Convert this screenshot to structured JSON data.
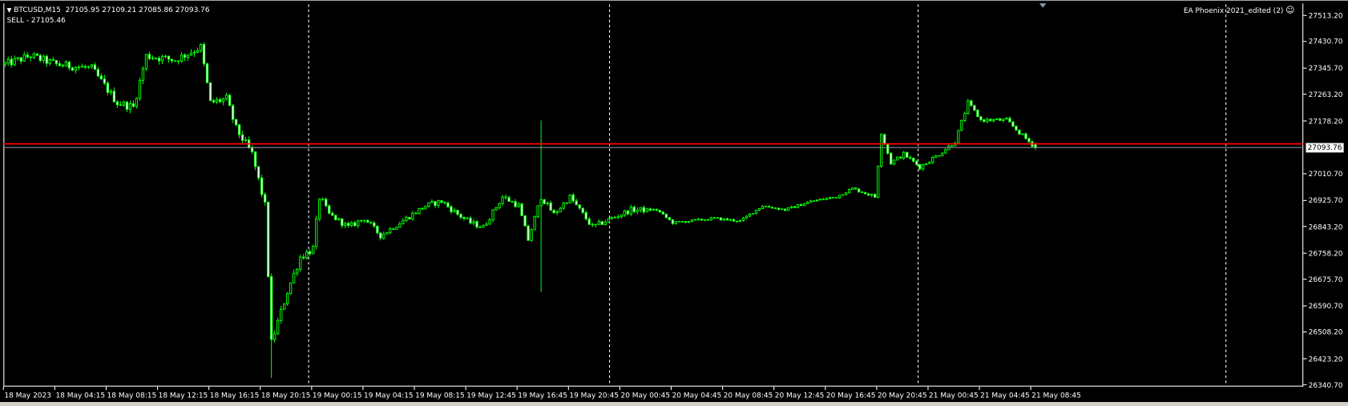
{
  "header": {
    "symbol_line": "BTCUSD,M15  27105.95 27109.21 27085.86 27093.76",
    "order_line": "SELL - 27105.46",
    "ea_label": "EA Phoenix 2021_edited (2)",
    "ea_icon": "smiley-face-icon"
  },
  "colors": {
    "background": "#000000",
    "candle_outline": "#00ff00",
    "bull_fill": "#000000",
    "bear_fill": "#ffffff",
    "sell_line": "#ff0000",
    "bid_line": "#8c9aa8",
    "grid_separator": "#ffffff"
  },
  "price_axis": {
    "labels": [
      "27513.20",
      "27430.70",
      "27345.70",
      "27263.20",
      "27178.20",
      "27010.70",
      "26925.70",
      "26843.20",
      "26758.20",
      "26675.70",
      "26590.70",
      "26508.20",
      "26423.20",
      "26340.70"
    ],
    "current_price": "27093.76"
  },
  "time_axis": {
    "labels": [
      "18 May 2023",
      "18 May 04:15",
      "18 May 08:15",
      "18 May 12:15",
      "18 May 16:15",
      "18 May 20:15",
      "19 May 00:15",
      "19 May 04:15",
      "19 May 08:15",
      "19 May 12:45",
      "19 May 16:45",
      "19 May 20:45",
      "20 May 00:45",
      "20 May 04:45",
      "20 May 08:45",
      "20 May 12:45",
      "20 May 16:45",
      "20 May 20:45",
      "21 May 00:45",
      "21 May 04:45",
      "21 May 08:45"
    ]
  },
  "chart_data": {
    "type": "candlestick",
    "symbol": "BTCUSD",
    "timeframe": "M15",
    "ylim": [
      26340.7,
      27513.2
    ],
    "last": {
      "open": 27105.95,
      "high": 27109.21,
      "low": 27085.86,
      "close": 27093.76
    },
    "sell_level": 27105.46,
    "bid_level": 27093.76,
    "bar_count": 322,
    "close_keypoints": [
      [
        0,
        27358
      ],
      [
        8,
        27385
      ],
      [
        16,
        27358
      ],
      [
        27,
        27345
      ],
      [
        35,
        27236
      ],
      [
        40,
        27222
      ],
      [
        44,
        27385
      ],
      [
        53,
        27372
      ],
      [
        61,
        27413
      ],
      [
        64,
        27236
      ],
      [
        69,
        27249
      ],
      [
        72,
        27154
      ],
      [
        77,
        27073
      ],
      [
        81,
        26909
      ],
      [
        83,
        26474
      ],
      [
        88,
        26637
      ],
      [
        92,
        26746
      ],
      [
        96,
        26773
      ],
      [
        98,
        26937
      ],
      [
        101,
        26882
      ],
      [
        107,
        26841
      ],
      [
        112,
        26869
      ],
      [
        117,
        26814
      ],
      [
        123,
        26855
      ],
      [
        131,
        26909
      ],
      [
        136,
        26923
      ],
      [
        141,
        26882
      ],
      [
        145,
        26855
      ],
      [
        149,
        26841
      ],
      [
        155,
        26937
      ],
      [
        160,
        26909
      ],
      [
        163,
        26801
      ],
      [
        167,
        26937
      ],
      [
        171,
        26882
      ],
      [
        176,
        26937
      ],
      [
        183,
        26841
      ],
      [
        189,
        26869
      ],
      [
        195,
        26896
      ],
      [
        203,
        26896
      ],
      [
        208,
        26855
      ],
      [
        213,
        26860
      ],
      [
        221,
        26869
      ],
      [
        229,
        26860
      ],
      [
        236,
        26909
      ],
      [
        243,
        26896
      ],
      [
        251,
        26923
      ],
      [
        259,
        26937
      ],
      [
        264,
        26964
      ],
      [
        271,
        26937
      ],
      [
        273,
        27141
      ],
      [
        276,
        27045
      ],
      [
        280,
        27073
      ],
      [
        285,
        27032
      ],
      [
        291,
        27073
      ],
      [
        296,
        27113
      ],
      [
        300,
        27236
      ],
      [
        304,
        27181
      ],
      [
        312,
        27181
      ],
      [
        316,
        27141
      ],
      [
        321,
        27093.76
      ]
    ],
    "wick_extremes": [
      {
        "bar": 83,
        "low": 26362
      },
      {
        "bar": 167,
        "high": 27180,
        "low": 26635
      }
    ],
    "day_separators": [
      "19 May 00:00",
      "20 May 00:00",
      "21 May 00:00",
      "22 May 00:00"
    ]
  }
}
